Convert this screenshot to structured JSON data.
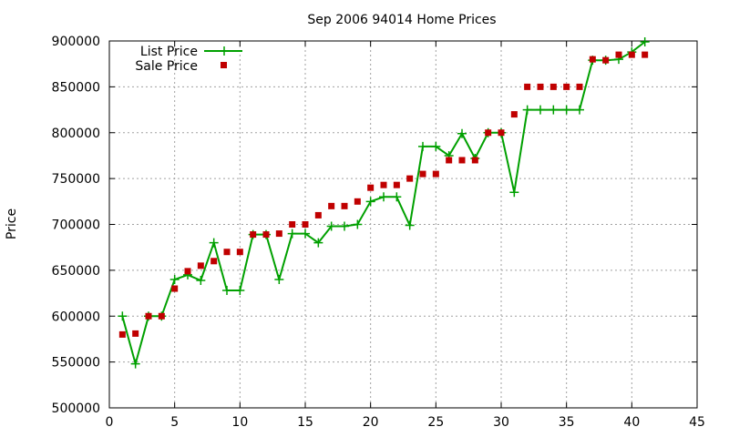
{
  "chart_data": {
    "type": "line",
    "title": "Sep 2006 94014 Home Prices",
    "xlabel": "",
    "ylabel": "Price",
    "xlim": [
      0,
      45
    ],
    "ylim": [
      500000,
      900000
    ],
    "x_ticks": [
      0,
      5,
      10,
      15,
      20,
      25,
      30,
      35,
      40,
      45
    ],
    "y_ticks": [
      500000,
      550000,
      600000,
      650000,
      700000,
      750000,
      800000,
      850000,
      900000
    ],
    "grid": true,
    "legend_position": "top-left",
    "series": [
      {
        "name": "List Price",
        "style": "line+plus",
        "color": "#00a000",
        "x": [
          1,
          2,
          3,
          4,
          5,
          6,
          7,
          8,
          9,
          10,
          11,
          12,
          13,
          14,
          15,
          16,
          17,
          18,
          19,
          20,
          21,
          22,
          23,
          24,
          25,
          26,
          27,
          28,
          29,
          30,
          31,
          32,
          33,
          34,
          35,
          36,
          37,
          38,
          39,
          40,
          41
        ],
        "y": [
          600000,
          548000,
          600000,
          600000,
          640000,
          645000,
          639000,
          680000,
          628000,
          628000,
          689000,
          689000,
          640000,
          690000,
          690000,
          680000,
          698000,
          698000,
          700000,
          725000,
          730000,
          730000,
          699000,
          785000,
          785000,
          775000,
          799000,
          772000,
          800000,
          800000,
          735000,
          825000,
          825000,
          825000,
          825000,
          825000,
          879000,
          879000,
          880000,
          888000,
          899000
        ]
      },
      {
        "name": "Sale Price",
        "style": "square",
        "color": "#c00000",
        "x": [
          1,
          2,
          3,
          4,
          5,
          6,
          7,
          8,
          9,
          10,
          11,
          12,
          13,
          14,
          15,
          16,
          17,
          18,
          19,
          20,
          21,
          22,
          23,
          24,
          25,
          26,
          27,
          28,
          29,
          30,
          31,
          32,
          33,
          34,
          35,
          36,
          37,
          38,
          39,
          40,
          41
        ],
        "y": [
          580000,
          581000,
          600000,
          600000,
          630000,
          649000,
          655000,
          660000,
          670000,
          670000,
          689000,
          689000,
          690000,
          700000,
          700000,
          710000,
          720000,
          720000,
          725000,
          740000,
          743000,
          743000,
          750000,
          755000,
          755000,
          770000,
          770000,
          770000,
          800000,
          800000,
          820000,
          850000,
          850000,
          850000,
          850000,
          850000,
          880000,
          879000,
          885000,
          885000,
          885000
        ]
      }
    ]
  }
}
